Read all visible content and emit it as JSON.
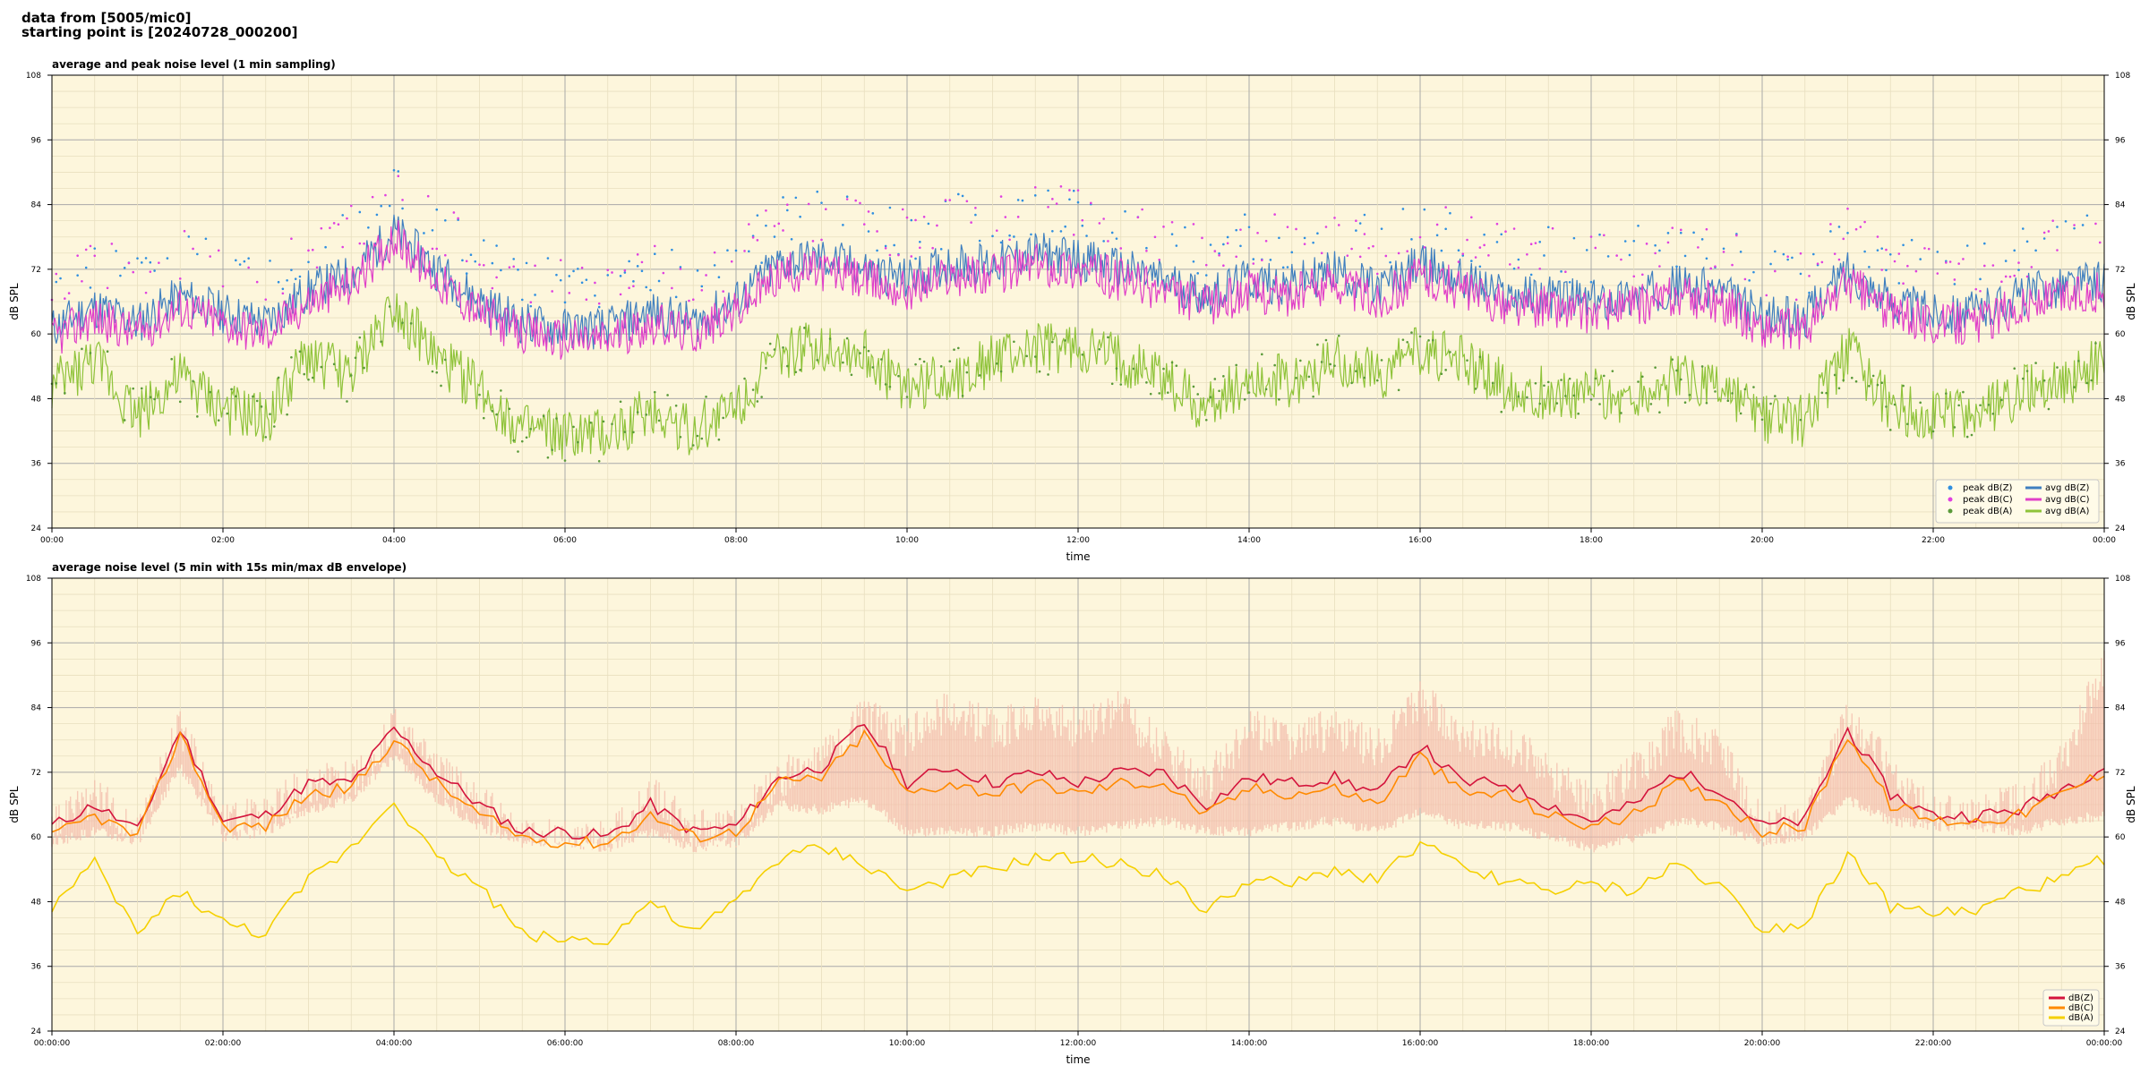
{
  "header": {
    "line1": "data from [5005/mic0]",
    "line2": "starting point is [20240728_000200]"
  },
  "colors": {
    "plot_bg": "#fdf6dc",
    "grid_major": "#a9a9a9",
    "grid_minor": "#e8dfbf",
    "envelope": "#f3b8a8",
    "top_z": "#3f7fbf",
    "top_c": "#e040c8",
    "top_a": "#8fc33a",
    "top_peak_z": "#2f8fe0",
    "top_peak_c": "#e040e0",
    "top_peak_a": "#5a9a3a",
    "bot_z": "#d4143c",
    "bot_c": "#ff8a00",
    "bot_a": "#f5d000"
  },
  "chart_data": [
    {
      "type": "line",
      "title": "average and peak noise level (1 min sampling)",
      "xlabel": "time",
      "ylabel": "dB SPL",
      "ylabel_right": "dB SPL",
      "ylim": [
        24,
        108
      ],
      "xlim_hours": [
        0,
        24
      ],
      "yticks": [
        "24",
        "36",
        "48",
        "60",
        "72",
        "84",
        "96",
        "108"
      ],
      "xticks": [
        "00:00",
        "02:00",
        "04:00",
        "06:00",
        "08:00",
        "10:00",
        "12:00",
        "14:00",
        "16:00",
        "18:00",
        "20:00",
        "22:00",
        "00:00"
      ],
      "grid": true,
      "legend_position": "bottom-right",
      "legend": [
        {
          "label": "peak dB(Z)",
          "kind": "dot",
          "color_key": "top_peak_z"
        },
        {
          "label": "peak dB(C)",
          "kind": "dot",
          "color_key": "top_peak_c"
        },
        {
          "label": "peak dB(A)",
          "kind": "dot",
          "color_key": "top_peak_a"
        },
        {
          "label": "avg dB(Z)",
          "kind": "line",
          "color_key": "top_z"
        },
        {
          "label": "avg dB(C)",
          "kind": "line",
          "color_key": "top_c"
        },
        {
          "label": "avg dB(A)",
          "kind": "line",
          "color_key": "top_a"
        }
      ],
      "x_hours": [
        0,
        0.5,
        1,
        1.5,
        2,
        2.5,
        3,
        3.5,
        4,
        4.5,
        5,
        5.5,
        6,
        6.5,
        7,
        7.5,
        8,
        8.5,
        9,
        9.5,
        10,
        10.5,
        11,
        11.5,
        12,
        12.5,
        13,
        13.5,
        14,
        14.5,
        15,
        15.5,
        16,
        16.5,
        17,
        17.5,
        18,
        18.5,
        19,
        19.5,
        20,
        20.5,
        21,
        21.5,
        22,
        22.5,
        23,
        23.5,
        24
      ],
      "series": [
        {
          "name": "avg dB(Z)",
          "color_key": "top_z",
          "values": [
            61,
            65,
            62,
            67,
            64,
            62,
            68,
            71,
            79,
            72,
            66,
            62,
            61,
            61,
            64,
            62,
            66,
            73,
            74,
            72,
            70,
            73,
            73,
            75,
            74,
            72,
            70,
            67,
            70,
            69,
            72,
            68,
            73,
            70,
            67,
            67,
            66,
            67,
            69,
            68,
            63,
            63,
            72,
            66,
            64,
            64,
            67,
            69,
            70
          ]
        },
        {
          "name": "avg dB(C)",
          "color_key": "top_c",
          "values": [
            59,
            63,
            60,
            65,
            62,
            60,
            66,
            69,
            78,
            70,
            64,
            60,
            59,
            59,
            62,
            60,
            64,
            71,
            72,
            70,
            68,
            71,
            71,
            73,
            72,
            70,
            68,
            65,
            68,
            67,
            70,
            66,
            71,
            68,
            65,
            65,
            64,
            65,
            67,
            66,
            61,
            61,
            70,
            64,
            62,
            62,
            65,
            67,
            68
          ]
        },
        {
          "name": "avg dB(A)",
          "color_key": "top_a",
          "values": [
            50,
            55,
            45,
            52,
            46,
            44,
            56,
            52,
            66,
            55,
            50,
            42,
            41,
            41,
            46,
            42,
            47,
            56,
            58,
            56,
            50,
            52,
            55,
            57,
            57,
            55,
            52,
            46,
            52,
            51,
            55,
            52,
            57,
            55,
            50,
            49,
            49,
            48,
            52,
            50,
            44,
            44,
            57,
            46,
            45,
            45,
            49,
            51,
            55
          ]
        }
      ]
    },
    {
      "type": "line",
      "title": "average noise level (5 min with 15s min/max dB envelope)",
      "xlabel": "time",
      "ylabel": "dB SPL",
      "ylabel_right": "dB SPL",
      "ylim": [
        24,
        108
      ],
      "xlim_hours": [
        0,
        24
      ],
      "yticks": [
        "24",
        "36",
        "48",
        "60",
        "72",
        "84",
        "96",
        "108"
      ],
      "xticks": [
        "00:00:00",
        "02:00:00",
        "04:00:00",
        "06:00:00",
        "08:00:00",
        "10:00:00",
        "12:00:00",
        "14:00:00",
        "16:00:00",
        "18:00:00",
        "20:00:00",
        "22:00:00",
        "00:00:00"
      ],
      "grid": true,
      "legend_position": "bottom-right",
      "legend": [
        {
          "label": "dB(Z)",
          "kind": "line",
          "color_key": "bot_z"
        },
        {
          "label": "dB(C)",
          "kind": "line",
          "color_key": "bot_c"
        },
        {
          "label": "dB(A)",
          "kind": "line",
          "color_key": "bot_a"
        }
      ],
      "x_hours": [
        0,
        0.5,
        1,
        1.5,
        2,
        2.5,
        3,
        3.5,
        4,
        4.5,
        5,
        5.5,
        6,
        6.5,
        7,
        7.5,
        8,
        8.5,
        9,
        9.5,
        10,
        10.5,
        11,
        11.5,
        12,
        12.5,
        13,
        13.5,
        14,
        14.5,
        15,
        15.5,
        16,
        16.5,
        17,
        17.5,
        18,
        18.5,
        19,
        19.5,
        20,
        20.5,
        21,
        21.5,
        22,
        22.5,
        23,
        23.5,
        24
      ],
      "series": [
        {
          "name": "dB(Z)",
          "color_key": "bot_z",
          "values": [
            62,
            66,
            61,
            80,
            63,
            64,
            70,
            70,
            80,
            72,
            66,
            61,
            61,
            60,
            66,
            61,
            62,
            71,
            73,
            81,
            70,
            73,
            70,
            72,
            70,
            72,
            72,
            66,
            71,
            70,
            71,
            68,
            77,
            70,
            70,
            66,
            63,
            66,
            72,
            69,
            62,
            63,
            80,
            68,
            64,
            64,
            65,
            69,
            73
          ]
        },
        {
          "name": "dB(C)",
          "color_key": "bot_c",
          "values": [
            60,
            64,
            60,
            79,
            62,
            62,
            68,
            69,
            78,
            70,
            64,
            60,
            59,
            59,
            64,
            60,
            61,
            70,
            71,
            79,
            68,
            70,
            68,
            70,
            68,
            70,
            70,
            64,
            69,
            68,
            69,
            66,
            75,
            68,
            68,
            64,
            62,
            64,
            70,
            67,
            61,
            62,
            79,
            66,
            63,
            63,
            64,
            68,
            72
          ]
        },
        {
          "name": "dB(A)",
          "color_key": "bot_a",
          "values": [
            47,
            55,
            42,
            50,
            44,
            42,
            52,
            58,
            67,
            56,
            51,
            42,
            41,
            41,
            48,
            42,
            48,
            56,
            58,
            55,
            50,
            52,
            54,
            56,
            56,
            55,
            53,
            46,
            52,
            51,
            54,
            52,
            59,
            54,
            52,
            50,
            51,
            50,
            55,
            51,
            43,
            44,
            57,
            47,
            46,
            46,
            50,
            52,
            56
          ]
        },
        {
          "name": "dB(Z) envelope max",
          "color_key": "envelope",
          "values": [
            66,
            72,
            64,
            85,
            66,
            68,
            74,
            74,
            84,
            76,
            70,
            64,
            63,
            63,
            72,
            65,
            66,
            75,
            78,
            86,
            82,
            88,
            84,
            86,
            84,
            88,
            80,
            74,
            84,
            82,
            84,
            80,
            90,
            82,
            82,
            76,
            70,
            76,
            84,
            80,
            66,
            66,
            86,
            76,
            68,
            68,
            70,
            78,
            96
          ]
        },
        {
          "name": "dB(Z) envelope min",
          "color_key": "envelope",
          "values": [
            58,
            60,
            58,
            72,
            59,
            60,
            64,
            66,
            74,
            66,
            61,
            58,
            58,
            57,
            60,
            57,
            58,
            65,
            64,
            66,
            60,
            60,
            60,
            61,
            60,
            61,
            62,
            60,
            60,
            61,
            62,
            60,
            64,
            61,
            61,
            59,
            57,
            59,
            62,
            61,
            58,
            59,
            66,
            62,
            61,
            61,
            60,
            62,
            63
          ]
        }
      ]
    }
  ]
}
